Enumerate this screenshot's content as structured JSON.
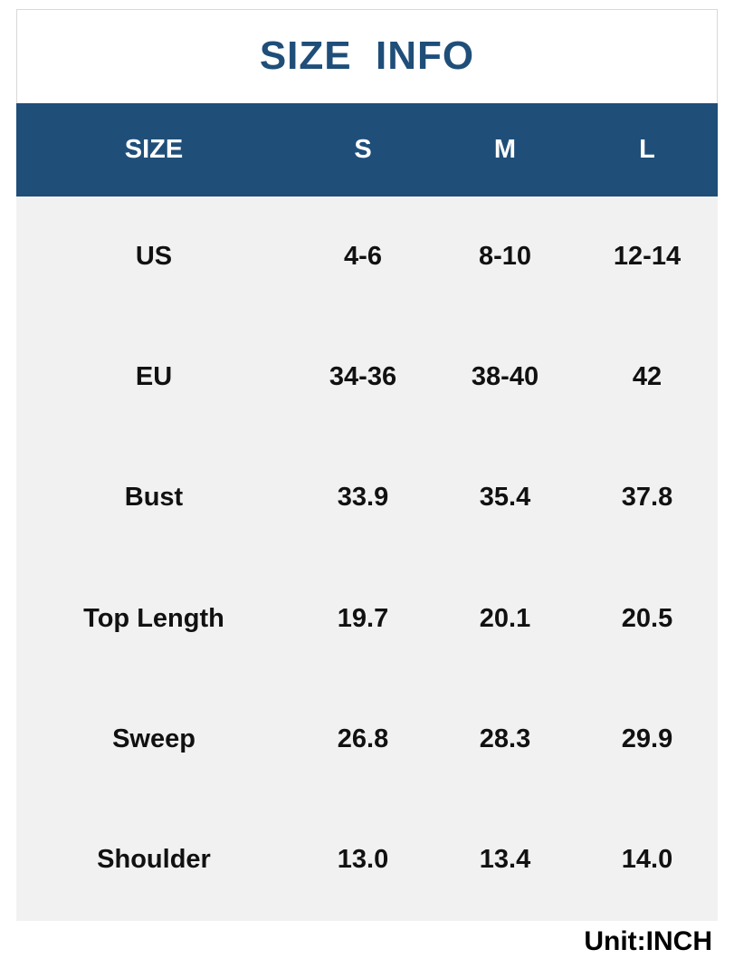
{
  "title": "SIZE  INFO",
  "header": {
    "label": "SIZE",
    "sizes": [
      "S",
      "M",
      "L"
    ]
  },
  "rows": [
    {
      "label": "US",
      "values": [
        "4-6",
        "8-10",
        "12-14"
      ]
    },
    {
      "label": "EU",
      "values": [
        "34-36",
        "38-40",
        "42"
      ]
    },
    {
      "label": "Bust",
      "values": [
        "33.9",
        "35.4",
        "37.8"
      ]
    },
    {
      "label": "Top Length",
      "values": [
        "19.7",
        "20.1",
        "20.5"
      ]
    },
    {
      "label": "Sweep",
      "values": [
        "26.8",
        "28.3",
        "29.9"
      ]
    },
    {
      "label": "Shoulder",
      "values": [
        "13.0",
        "13.4",
        "14.0"
      ]
    }
  ],
  "unit": "Unit:INCH",
  "colors": {
    "header_bg": "#1f4e79",
    "title_text": "#1f4e79",
    "body_bg": "#f1f1f1"
  }
}
